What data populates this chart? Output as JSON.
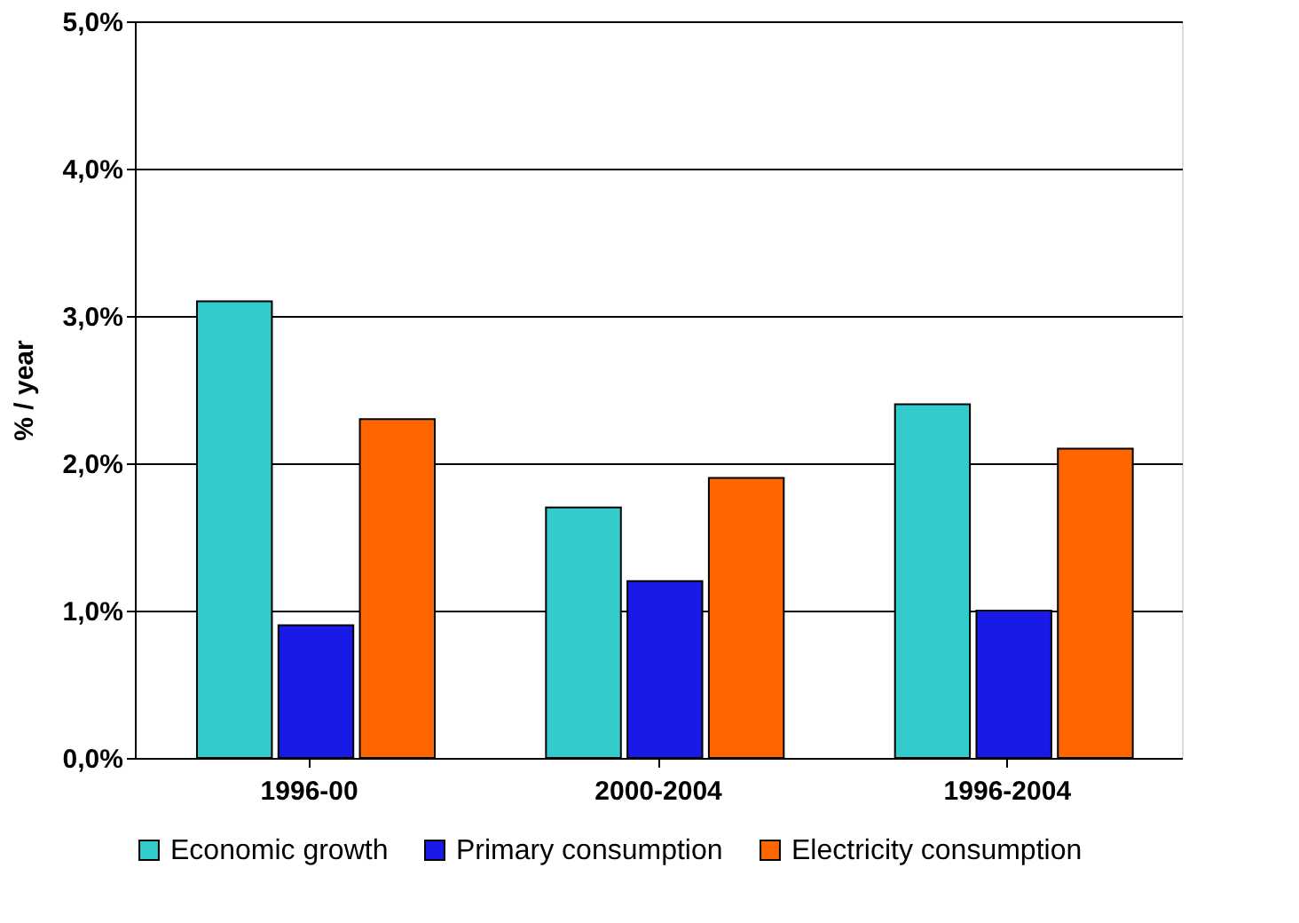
{
  "chart_data": {
    "type": "bar",
    "ylabel": "% / year",
    "categories": [
      "1996-00",
      "2000-2004",
      "1996-2004"
    ],
    "series": [
      {
        "name": "Economic growth",
        "color": "#33cccc",
        "values": [
          3.1,
          1.7,
          2.4
        ]
      },
      {
        "name": "Primary consumption",
        "color": "#1a1ae6",
        "values": [
          0.9,
          1.2,
          1.0
        ]
      },
      {
        "name": "Electricity consumption",
        "color": "#ff6600",
        "values": [
          2.3,
          1.9,
          2.1
        ]
      }
    ],
    "ylim": [
      0,
      5
    ],
    "yticks": [
      {
        "value": 0,
        "label": "0,0%"
      },
      {
        "value": 1,
        "label": "1,0%"
      },
      {
        "value": 2,
        "label": "2,0%"
      },
      {
        "value": 3,
        "label": "3,0%"
      },
      {
        "value": 4,
        "label": "4,0%"
      },
      {
        "value": 5,
        "label": "5,0%"
      }
    ],
    "grid": "y",
    "legend": "bottom"
  }
}
